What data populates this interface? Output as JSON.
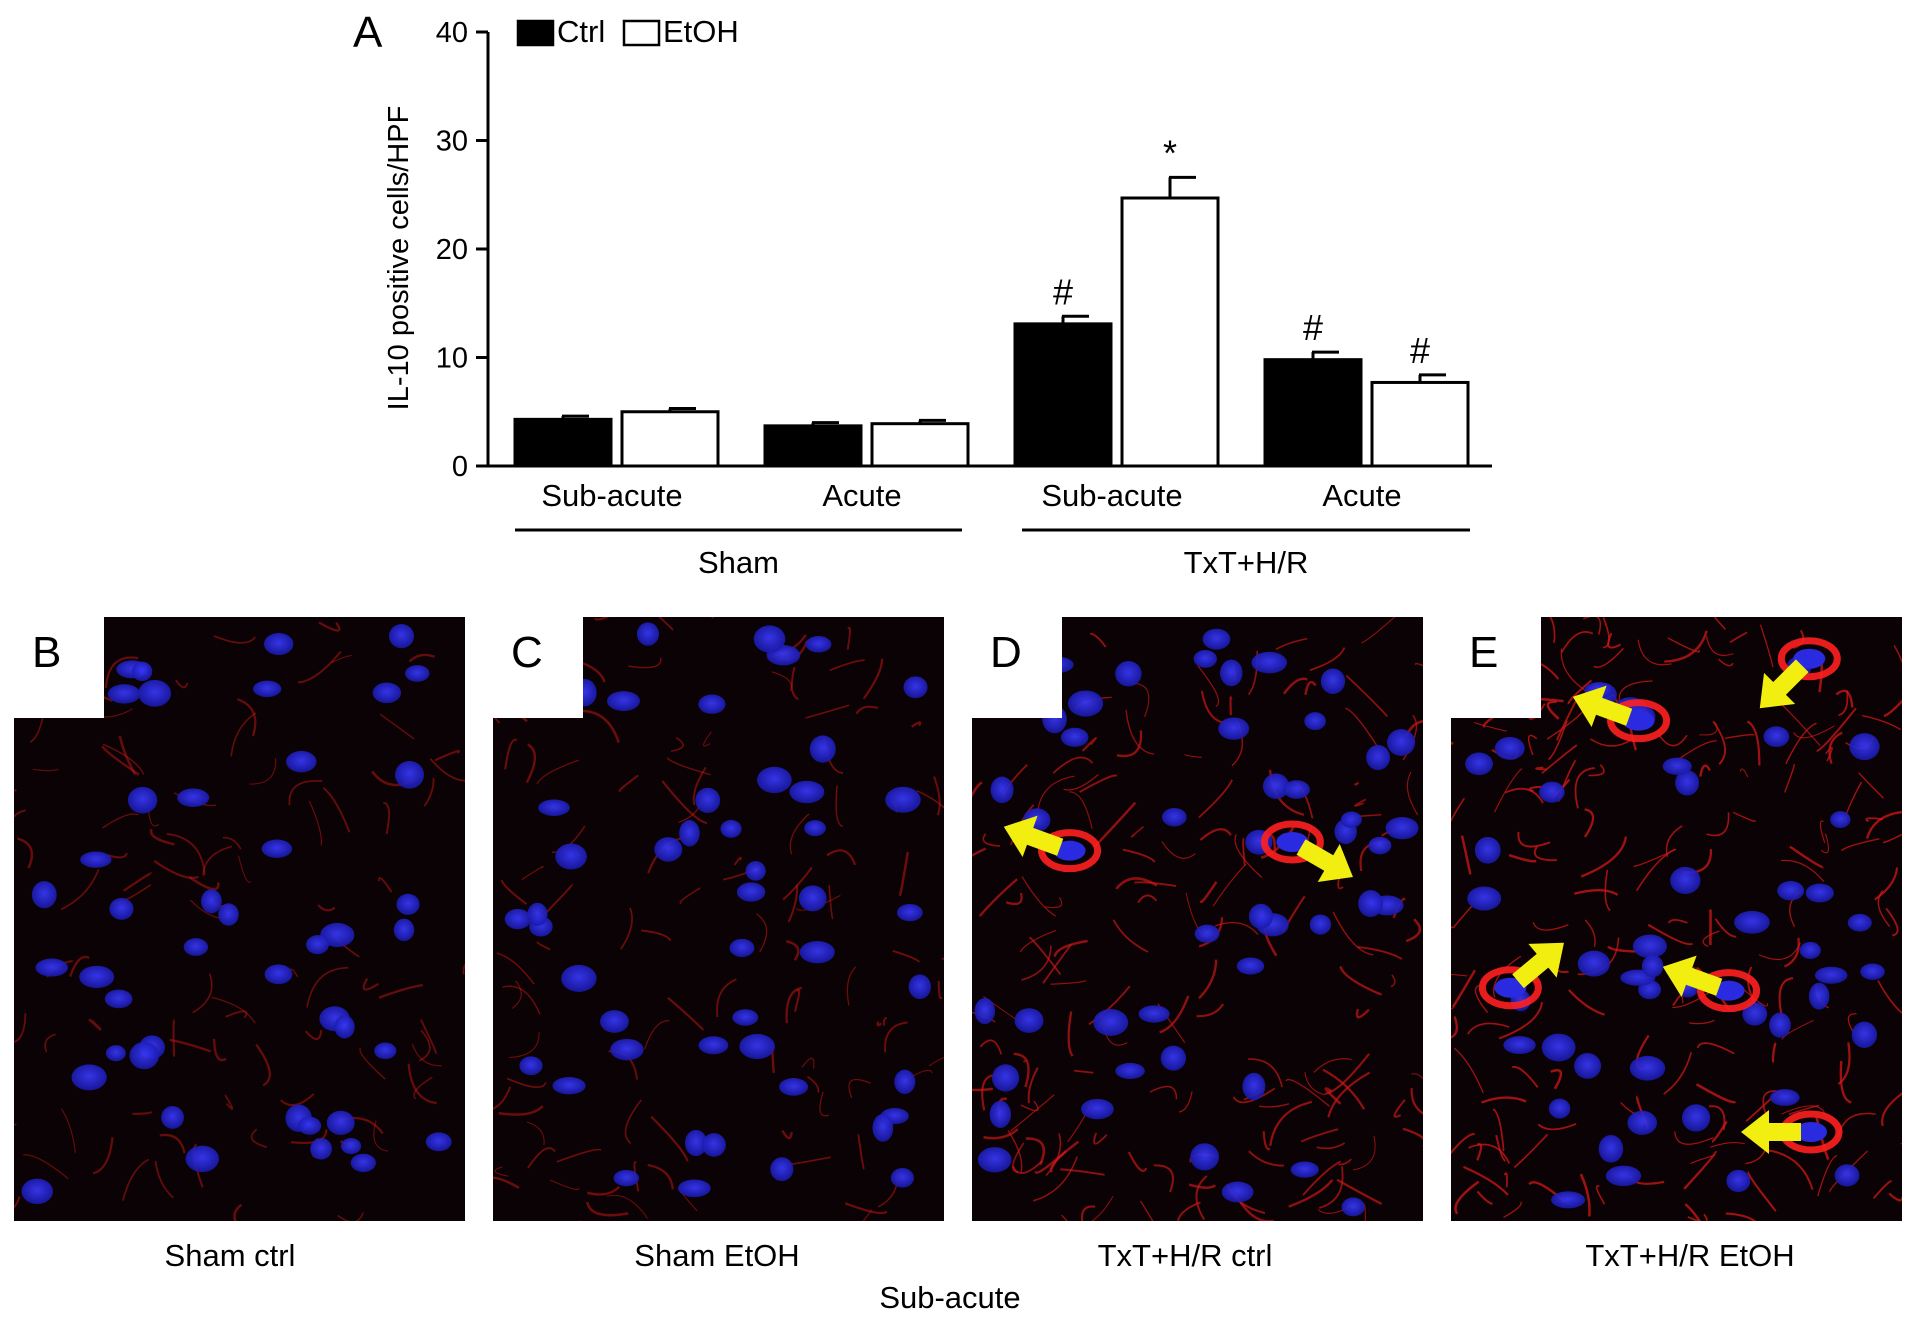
{
  "chart_data": {
    "type": "bar",
    "panel_letter": "A",
    "ylabel": "IL-10 positive cells/HPF",
    "ylim": [
      0,
      40
    ],
    "yticks": [
      "0",
      "10",
      "20",
      "30",
      "40"
    ],
    "legend": {
      "placement": "top-left",
      "entries": [
        {
          "name": "Ctrl",
          "color": "#000000"
        },
        {
          "name": "EtOH",
          "color": "#ffffff"
        }
      ]
    },
    "categories": [
      "Sub-acute",
      "Acute",
      "Sub-acute",
      "Acute"
    ],
    "groups": [
      {
        "label": "Sham",
        "categories": [
          0,
          1
        ]
      },
      {
        "label": "TxT+H/R",
        "categories": [
          2,
          3
        ]
      }
    ],
    "series": [
      {
        "name": "Ctrl",
        "color": "#000000",
        "values": [
          4.3,
          3.7,
          13.1,
          9.8
        ],
        "errors": [
          0.3,
          0.3,
          0.7,
          0.7
        ],
        "markers": [
          "",
          "",
          "#",
          "#"
        ]
      },
      {
        "name": "EtOH",
        "color": "#ffffff",
        "values": [
          5.0,
          3.9,
          24.7,
          7.7
        ],
        "errors": [
          0.3,
          0.3,
          1.9,
          0.7
        ],
        "markers": [
          "",
          "",
          "*",
          "#"
        ]
      }
    ]
  },
  "micrographs": {
    "panels": [
      {
        "letter": "B",
        "caption": "Sham ctrl"
      },
      {
        "letter": "C",
        "caption": "Sham EtOH"
      },
      {
        "letter": "D",
        "caption": "TxT+H/R ctrl"
      },
      {
        "letter": "E",
        "caption": "TxT+H/R EtOH"
      }
    ],
    "footer": "Sub-acute",
    "colors": {
      "background": "#0a0204",
      "nuclei": "#2a2ae0",
      "stain": "#d01818",
      "arrow": "#f2ee10"
    }
  }
}
